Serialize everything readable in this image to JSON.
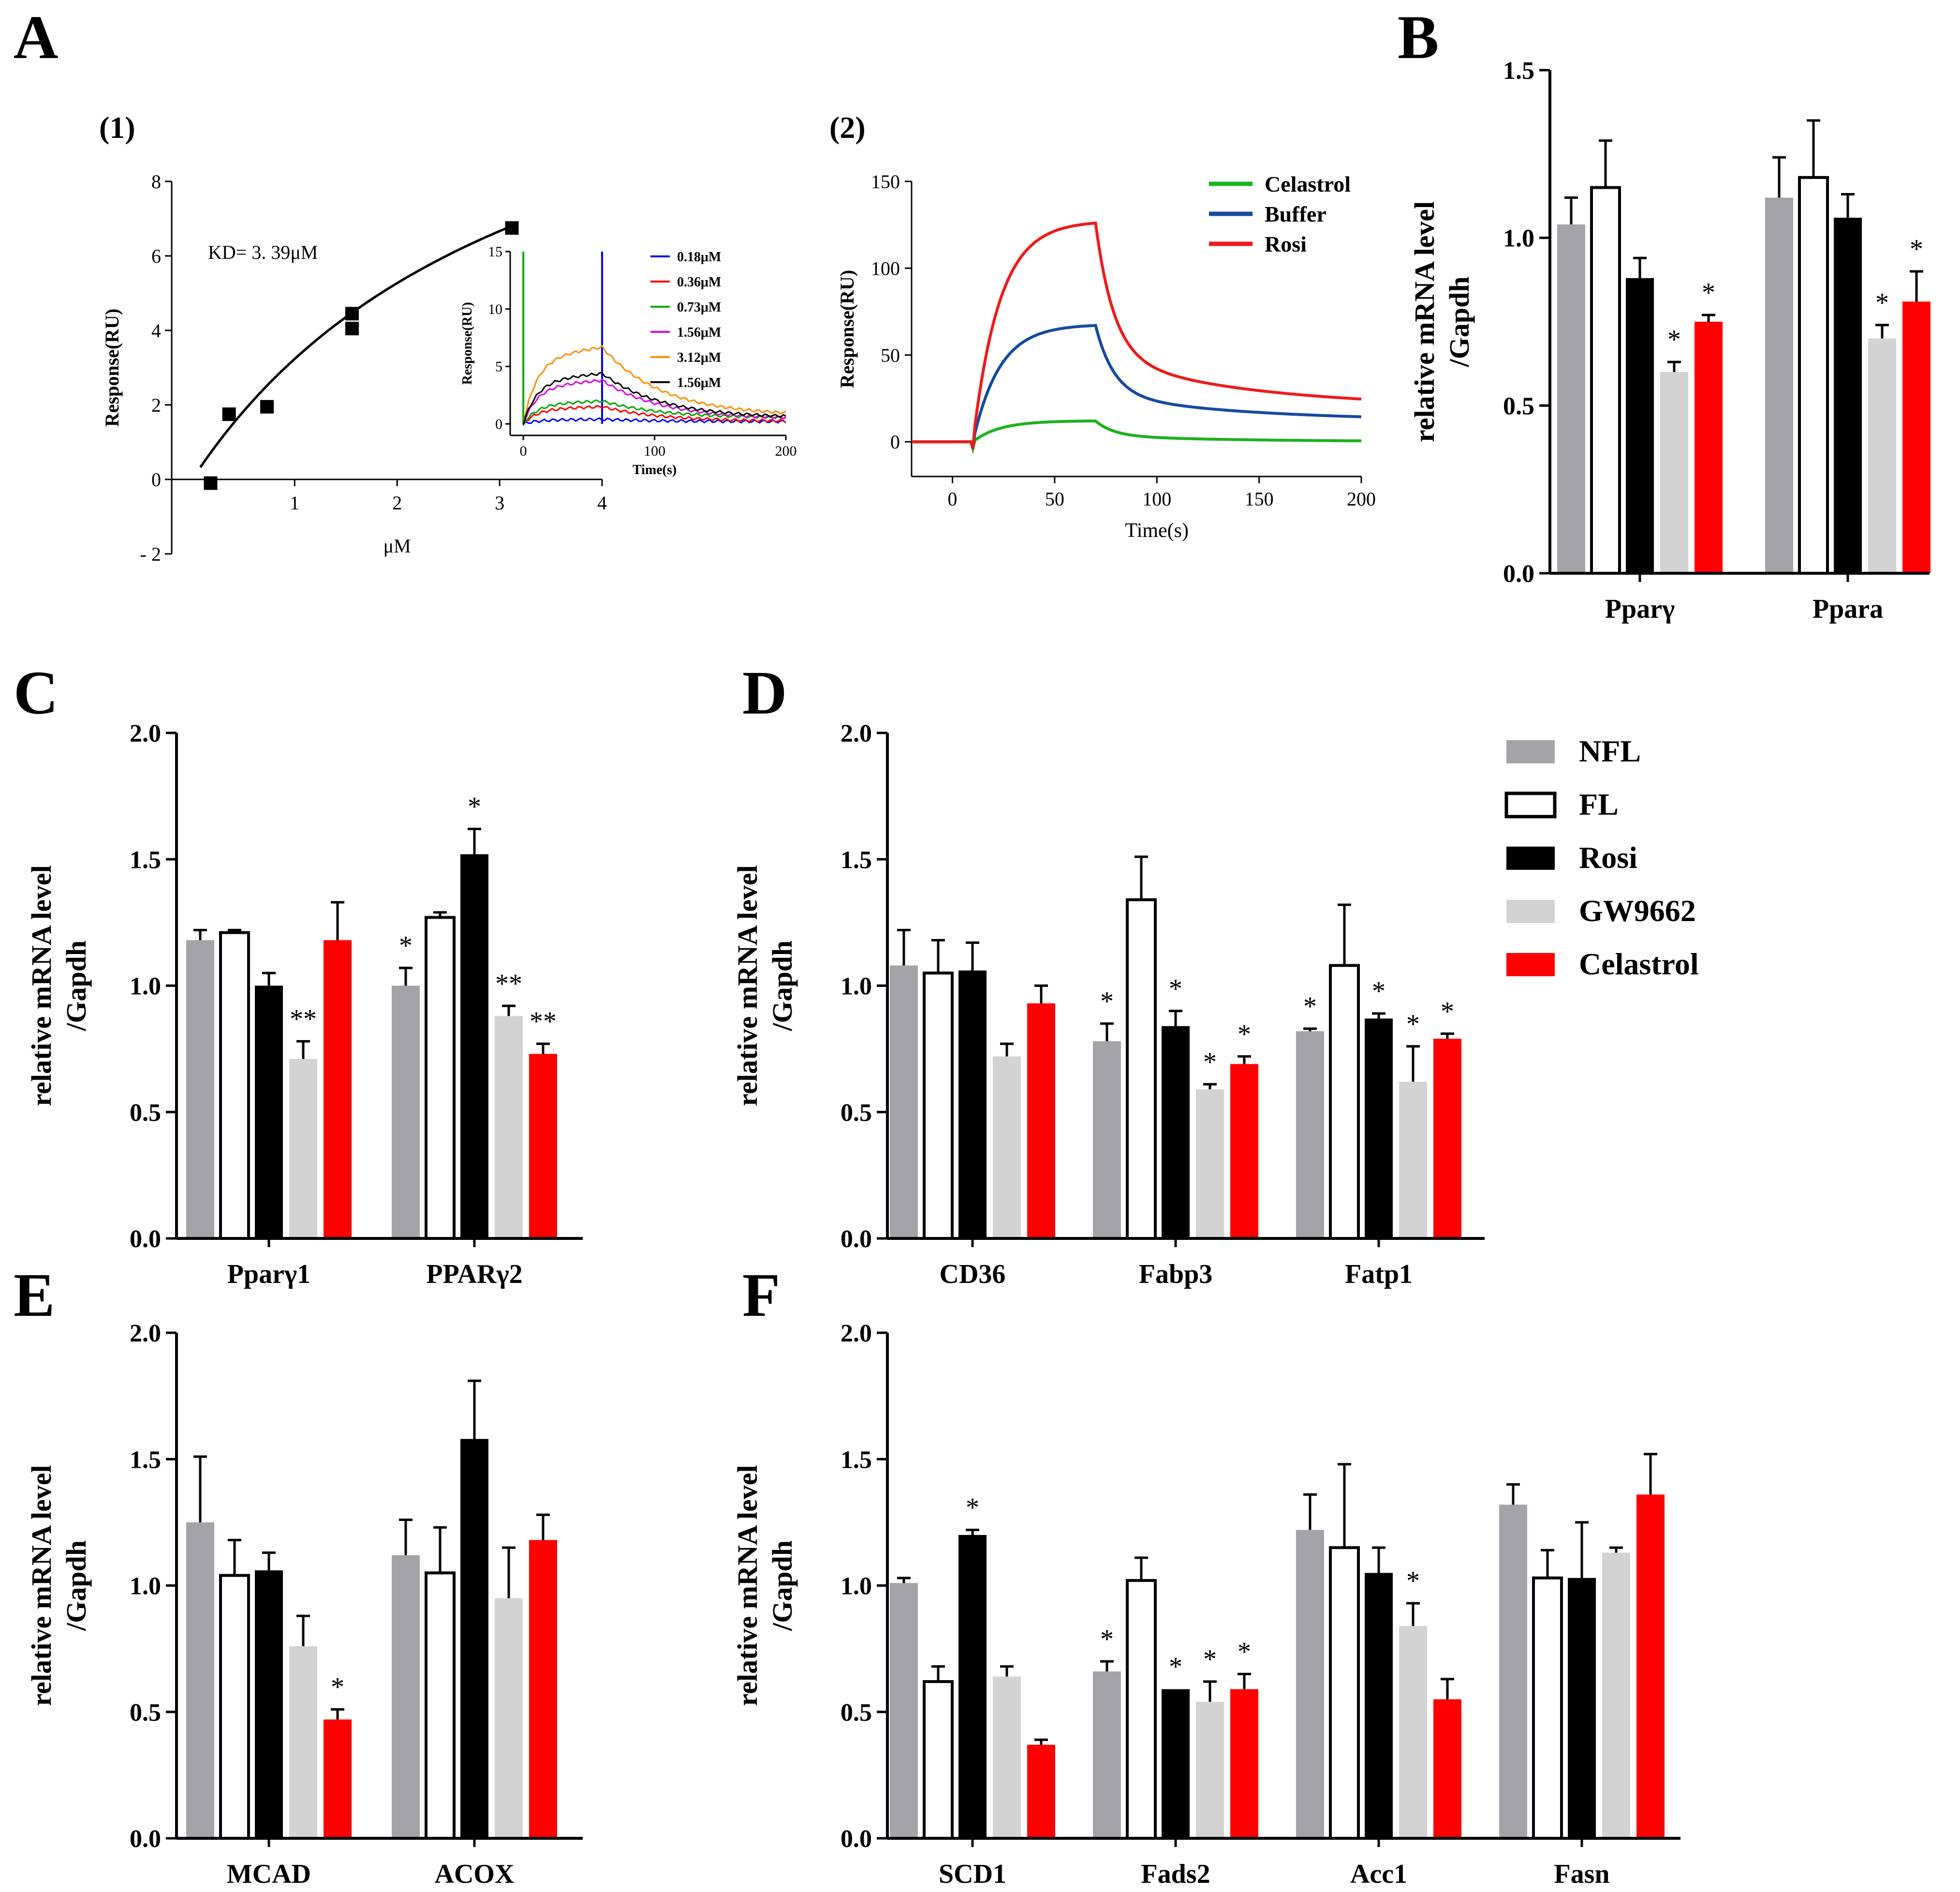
{
  "figure": {
    "panel_labels": [
      "A",
      "B",
      "C",
      "D",
      "E",
      "F"
    ],
    "sub_labels": [
      "(1)",
      "(2)"
    ]
  },
  "legend": {
    "groups": [
      "NFL",
      "FL",
      "Rosi",
      "GW9662",
      "Celastrol"
    ],
    "colors": [
      "#a3a3a8",
      "#ffffff",
      "#000000",
      "#d3d3d3",
      "#fe0000"
    ]
  },
  "chart_data": [
    {
      "panel": "A(1)",
      "type": "scatter",
      "title": "",
      "xlabel": "μM",
      "ylabel": "Response(RU)",
      "xlim": [
        -0.2,
        4
      ],
      "ylim": [
        -2,
        8
      ],
      "xticks": [
        1,
        2,
        3,
        4
      ],
      "yticks": [
        -2,
        0,
        2,
        4,
        6,
        8
      ],
      "x": [
        0.18,
        0.36,
        0.73,
        1.56,
        1.56,
        3.12
      ],
      "y": [
        -0.1,
        1.75,
        1.95,
        4.45,
        4.05,
        6.75
      ],
      "annotation": "KD= 3. 39μM",
      "fit": {
        "type": "one-site binding",
        "kd": 3.39,
        "bmax": 14.2,
        "x_range": [
          0.08,
          3.12
        ]
      }
    },
    {
      "panel": "A(1) inset",
      "type": "line",
      "xlabel": "Time(s)",
      "ylabel": "Response(RU)",
      "xlim": [
        -10,
        200
      ],
      "ylim": [
        -1,
        15
      ],
      "xticks": [
        0,
        100,
        200
      ],
      "yticks": [
        0,
        5,
        10,
        15
      ],
      "injection_end": 60,
      "series": [
        {
          "name": "0.18μM",
          "color": "#0000ff",
          "plateau": 0.4,
          "end": 0.2
        },
        {
          "name": "0.36μM",
          "color": "#ff0000",
          "plateau": 1.5,
          "end": 0.2
        },
        {
          "name": "0.73μM",
          "color": "#00aa00",
          "plateau": 2.0,
          "end": 0.5
        },
        {
          "name": "1.56μM",
          "color": "#e000e0",
          "plateau": 3.8,
          "end": 0.4
        },
        {
          "name": "3.12μM",
          "color": "#ff8c00",
          "plateau": 6.7,
          "end": 0.7
        },
        {
          "name": "1.56μM",
          "color": "#000000",
          "plateau": 4.4,
          "end": 0.5
        }
      ]
    },
    {
      "panel": "A(2)",
      "type": "line",
      "xlabel": "Time(s)",
      "ylabel": "Response(RU)",
      "xlim": [
        -20,
        200
      ],
      "ylim": [
        -20,
        150
      ],
      "xticks": [
        0,
        50,
        100,
        150,
        200
      ],
      "yticks": [
        0,
        50,
        100,
        150
      ],
      "inject_start": 10,
      "inject_end": 70,
      "series": [
        {
          "name": "Celastrol",
          "color": "#1db21d",
          "plateau": 12,
          "end": 0
        },
        {
          "name": "Buffer",
          "color": "#144a9e",
          "plateau": 67,
          "end": 12
        },
        {
          "name": "Rosi",
          "color": "#ee1b1b",
          "plateau": 126,
          "end": 20
        }
      ]
    },
    {
      "panel": "B",
      "type": "bar",
      "ylabel": "relative mRNA level /Gapdh",
      "ylim": [
        0,
        1.5
      ],
      "yticks": [
        "0.0",
        "0.5",
        "1.0",
        "1.5"
      ],
      "categories": [
        "Pparγ",
        "Ppara"
      ],
      "series": [
        {
          "name": "NFL",
          "values": [
            1.04,
            1.12
          ],
          "errors": [
            0.08,
            0.12
          ],
          "sig": [
            "",
            ""
          ]
        },
        {
          "name": "FL",
          "values": [
            1.15,
            1.18
          ],
          "errors": [
            0.14,
            0.17
          ],
          "sig": [
            "",
            ""
          ]
        },
        {
          "name": "Rosi",
          "values": [
            0.88,
            1.06
          ],
          "errors": [
            0.06,
            0.07
          ],
          "sig": [
            "",
            ""
          ]
        },
        {
          "name": "GW9662",
          "values": [
            0.6,
            0.7
          ],
          "errors": [
            0.03,
            0.04
          ],
          "sig": [
            "*",
            "*"
          ]
        },
        {
          "name": "Celastrol",
          "values": [
            0.75,
            0.81
          ],
          "errors": [
            0.02,
            0.09
          ],
          "sig": [
            "*",
            "*"
          ]
        }
      ]
    },
    {
      "panel": "C",
      "type": "bar",
      "ylabel": "relative mRNA level /Gapdh",
      "ylim": [
        0,
        2
      ],
      "yticks": [
        "0.0",
        "0.5",
        "1.0",
        "1.5",
        "2.0"
      ],
      "categories": [
        "Pparγ1",
        "PPARγ2"
      ],
      "series": [
        {
          "name": "NFL",
          "values": [
            1.18,
            1.0
          ],
          "errors": [
            0.04,
            0.07
          ],
          "sig": [
            "",
            "*"
          ]
        },
        {
          "name": "FL",
          "values": [
            1.21,
            1.27
          ],
          "errors": [
            0.01,
            0.02
          ],
          "sig": [
            "",
            ""
          ]
        },
        {
          "name": "Rosi",
          "values": [
            1.0,
            1.52
          ],
          "errors": [
            0.05,
            0.1
          ],
          "sig": [
            "",
            "*"
          ]
        },
        {
          "name": "GW9662",
          "values": [
            0.71,
            0.88
          ],
          "errors": [
            0.07,
            0.04
          ],
          "sig": [
            "**",
            "**"
          ]
        },
        {
          "name": "Celastrol",
          "values": [
            1.18,
            0.73
          ],
          "errors": [
            0.15,
            0.04
          ],
          "sig": [
            "",
            "**"
          ]
        }
      ]
    },
    {
      "panel": "D",
      "type": "bar",
      "ylabel": "relative mRNA level /Gapdh",
      "ylim": [
        0,
        2
      ],
      "yticks": [
        "0.0",
        "0.5",
        "1.0",
        "1.5",
        "2.0"
      ],
      "categories": [
        "CD36",
        "Fabp3",
        "Fatp1"
      ],
      "series": [
        {
          "name": "NFL",
          "values": [
            1.08,
            0.78,
            0.82
          ],
          "errors": [
            0.14,
            0.07,
            0.01
          ],
          "sig": [
            "",
            "*",
            "*"
          ]
        },
        {
          "name": "FL",
          "values": [
            1.05,
            1.34,
            1.08
          ],
          "errors": [
            0.13,
            0.17,
            0.24
          ],
          "sig": [
            "",
            "",
            ""
          ]
        },
        {
          "name": "Rosi",
          "values": [
            1.06,
            0.84,
            0.87
          ],
          "errors": [
            0.11,
            0.06,
            0.02
          ],
          "sig": [
            "",
            "*",
            "*"
          ]
        },
        {
          "name": "GW9662",
          "values": [
            0.72,
            0.59,
            0.62
          ],
          "errors": [
            0.05,
            0.02,
            0.14
          ],
          "sig": [
            "",
            "*",
            "*"
          ]
        },
        {
          "name": "Celastrol",
          "values": [
            0.93,
            0.69,
            0.79
          ],
          "errors": [
            0.07,
            0.03,
            0.02
          ],
          "sig": [
            "",
            "*",
            "*"
          ]
        }
      ]
    },
    {
      "panel": "E",
      "type": "bar",
      "ylabel": "relative mRNA level /Gapdh",
      "ylim": [
        0,
        2
      ],
      "yticks": [
        "0.0",
        "0.5",
        "1.0",
        "1.5",
        "2.0"
      ],
      "categories": [
        "MCAD",
        "ACOX"
      ],
      "series": [
        {
          "name": "NFL",
          "values": [
            1.25,
            1.12
          ],
          "errors": [
            0.26,
            0.14
          ],
          "sig": [
            "",
            ""
          ]
        },
        {
          "name": "FL",
          "values": [
            1.04,
            1.05
          ],
          "errors": [
            0.14,
            0.18
          ],
          "sig": [
            "",
            ""
          ]
        },
        {
          "name": "Rosi",
          "values": [
            1.06,
            1.58
          ],
          "errors": [
            0.07,
            0.23
          ],
          "sig": [
            "",
            ""
          ]
        },
        {
          "name": "GW9662",
          "values": [
            0.76,
            0.95
          ],
          "errors": [
            0.12,
            0.2
          ],
          "sig": [
            "",
            ""
          ]
        },
        {
          "name": "Celastrol",
          "values": [
            0.47,
            1.18
          ],
          "errors": [
            0.04,
            0.1
          ],
          "sig": [
            "*",
            ""
          ]
        }
      ]
    },
    {
      "panel": "F",
      "type": "bar",
      "ylabel": "relative mRNA level /Gapdh",
      "ylim": [
        0,
        2
      ],
      "yticks": [
        "0.0",
        "0.5",
        "1.0",
        "1.5",
        "2.0"
      ],
      "categories": [
        "SCD1",
        "Fads2",
        "Acc1",
        "Fasn"
      ],
      "series": [
        {
          "name": "NFL",
          "values": [
            1.01,
            0.66,
            1.22,
            1.32
          ],
          "errors": [
            0.02,
            0.04,
            0.14,
            0.08
          ],
          "sig": [
            "",
            "*",
            "",
            ""
          ]
        },
        {
          "name": "FL",
          "values": [
            0.62,
            1.02,
            1.15,
            1.03
          ],
          "errors": [
            0.06,
            0.09,
            0.33,
            0.11
          ],
          "sig": [
            "",
            "",
            "",
            ""
          ]
        },
        {
          "name": "Rosi",
          "values": [
            1.2,
            0.59,
            1.05,
            1.03
          ],
          "errors": [
            0.02,
            0.0,
            0.1,
            0.22
          ],
          "sig": [
            "*",
            "*",
            "",
            ""
          ]
        },
        {
          "name": "GW9662",
          "values": [
            0.64,
            0.54,
            0.84,
            1.13
          ],
          "errors": [
            0.04,
            0.08,
            0.09,
            0.02
          ],
          "sig": [
            "",
            "*",
            "*",
            ""
          ]
        },
        {
          "name": "Celastrol",
          "values": [
            0.37,
            0.59,
            0.55,
            1.36
          ],
          "errors": [
            0.02,
            0.06,
            0.08,
            0.16
          ],
          "sig": [
            "",
            "*",
            "",
            ""
          ]
        }
      ]
    }
  ]
}
